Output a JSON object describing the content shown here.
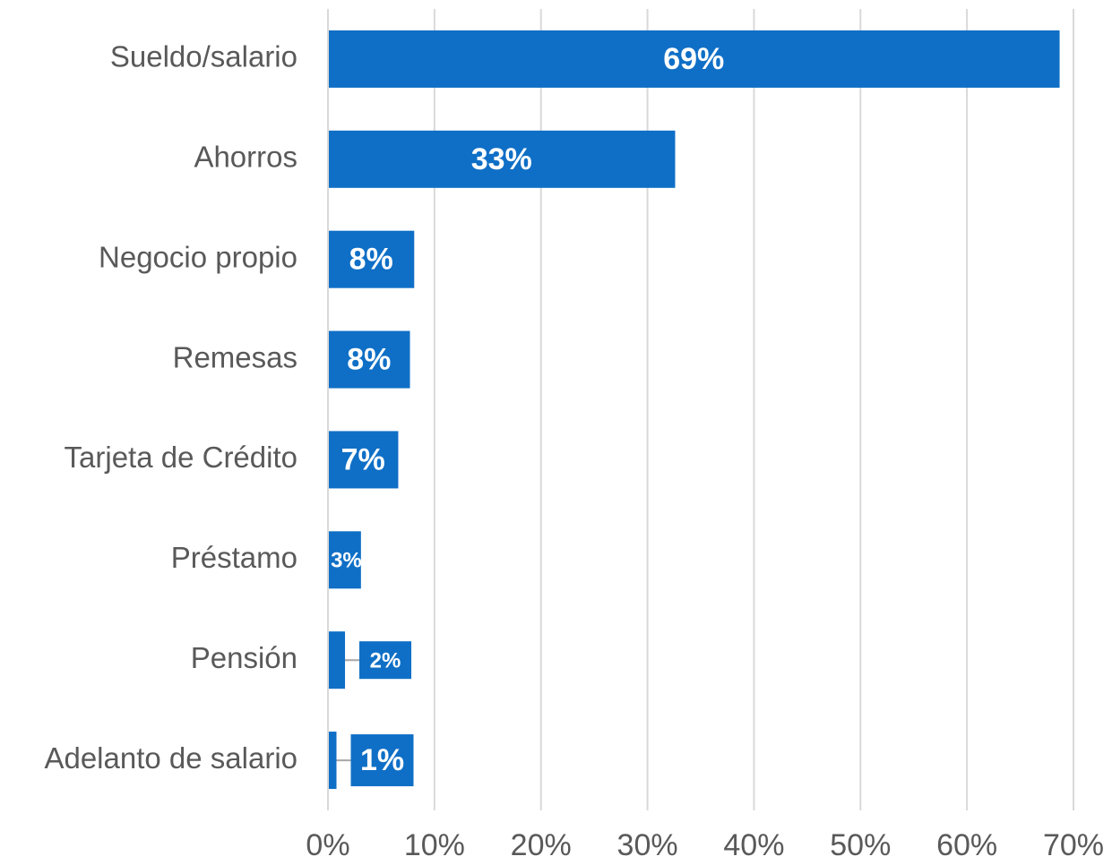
{
  "chart_data": {
    "type": "hbar",
    "categories": [
      "Sueldo/salario",
      "Ahorros",
      "Negocio propio",
      "Remesas",
      "Tarjeta de Crédito",
      "Préstamo",
      "Pensión",
      "Adelanto de salario"
    ],
    "values": [
      68.7,
      32.6,
      8.1,
      7.7,
      6.6,
      3.1,
      1.6,
      0.8
    ],
    "value_labels": [
      "69%",
      "33%",
      "8%",
      "8%",
      "7%",
      "3%",
      "2%",
      "1%"
    ],
    "color": "#0f6fc6",
    "xlim": [
      0,
      70
    ],
    "xticks": [
      {
        "value": 0,
        "label": "0%"
      },
      {
        "value": 10,
        "label": "10%"
      },
      {
        "value": 20,
        "label": "20%"
      },
      {
        "value": 30,
        "label": "30%"
      },
      {
        "value": 40,
        "label": "40%"
      },
      {
        "value": 50,
        "label": "50%"
      },
      {
        "value": 60,
        "label": "60%"
      },
      {
        "value": 70,
        "label": "70%"
      }
    ],
    "grid": true
  }
}
